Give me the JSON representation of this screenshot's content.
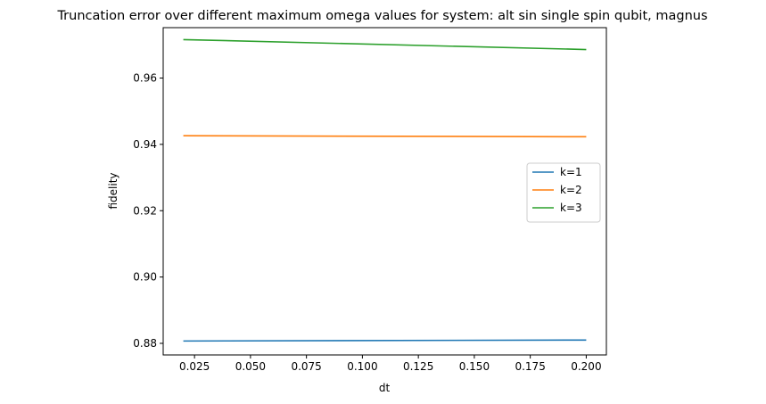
{
  "chart_data": {
    "type": "line",
    "title": "Truncation error over different maximum omega values for system: alt sin single spin qubit, magnus",
    "xlabel": "dt",
    "ylabel": "fidelity",
    "xlim": [
      0.011,
      0.209
    ],
    "ylim": [
      0.8765,
      0.9752
    ],
    "xticks": [
      0.025,
      0.05,
      0.075,
      0.1,
      0.125,
      0.15,
      0.175,
      0.2
    ],
    "xtick_labels": [
      "0.025",
      "0.050",
      "0.075",
      "0.100",
      "0.125",
      "0.150",
      "0.175",
      "0.200"
    ],
    "yticks": [
      0.88,
      0.9,
      0.92,
      0.94,
      0.96
    ],
    "ytick_labels": [
      "0.88",
      "0.90",
      "0.92",
      "0.94",
      "0.96"
    ],
    "grid": false,
    "legend_position": "center-right",
    "series": [
      {
        "name": "k=1",
        "color": "#1f77b4",
        "x": [
          0.02,
          0.2
        ],
        "y": [
          0.8807,
          0.881
        ]
      },
      {
        "name": "k=2",
        "color": "#ff7f0e",
        "x": [
          0.02,
          0.2
        ],
        "y": [
          0.9426,
          0.9423
        ]
      },
      {
        "name": "k=3",
        "color": "#2ca02c",
        "x": [
          0.02,
          0.2
        ],
        "y": [
          0.9716,
          0.9686
        ]
      }
    ]
  }
}
